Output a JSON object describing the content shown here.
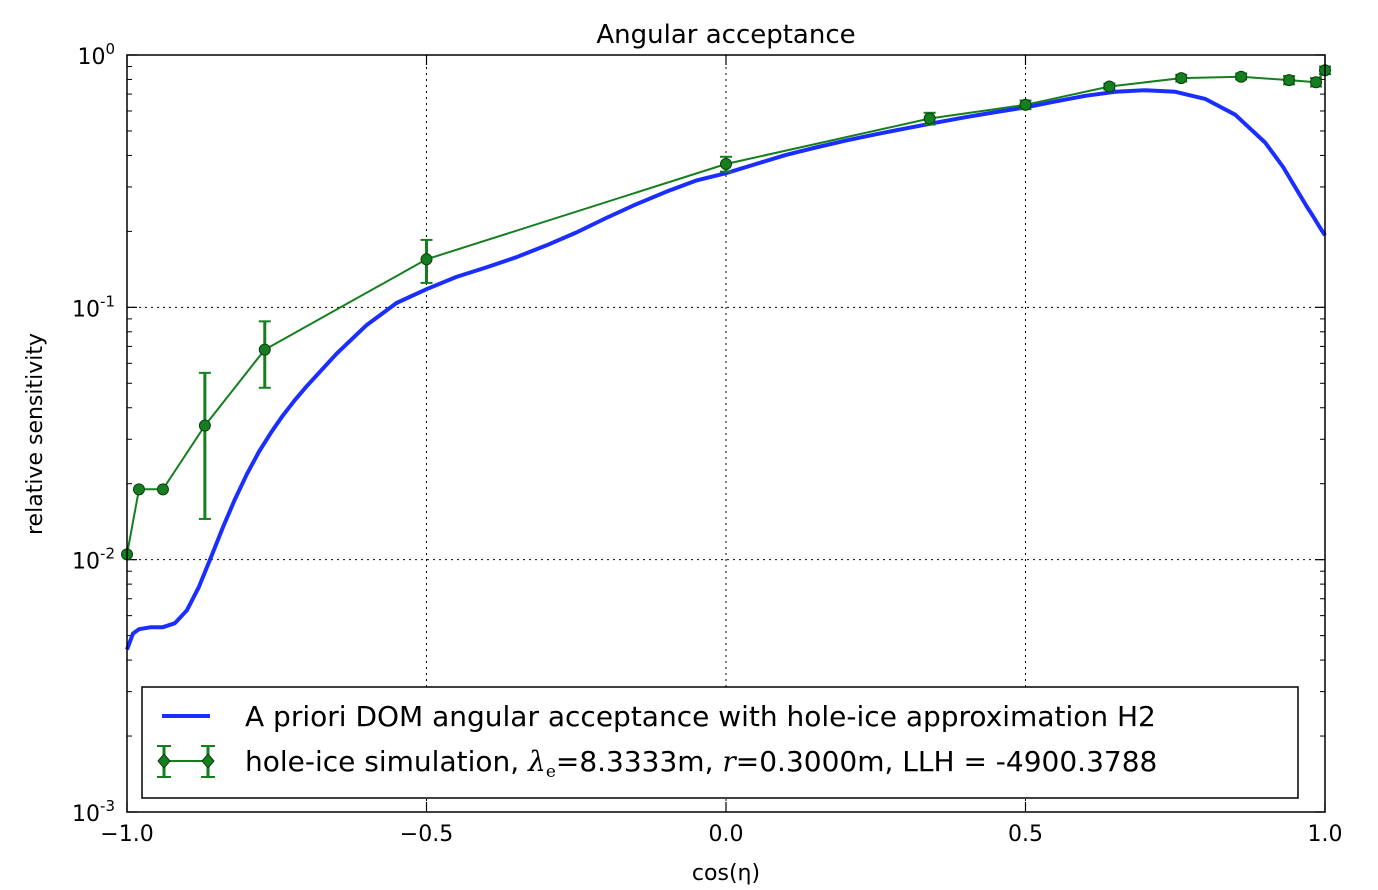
{
  "chart_data": {
    "type": "line",
    "title": "Angular acceptance",
    "xlabel": "cos(η)",
    "ylabel": "relative sensitivity",
    "xlim": [
      -1.0,
      1.0
    ],
    "ylim": [
      0.001,
      1.0
    ],
    "yscale": "log",
    "grid": true,
    "legend_position": "bottom",
    "x_ticks": [
      "−1.0",
      "−0.5",
      "0.0",
      "0.5",
      "1.0"
    ],
    "x_tick_values": [
      -1.0,
      -0.5,
      0.0,
      0.5,
      1.0
    ],
    "y_ticks": [
      {
        "base": "10",
        "exp": "0",
        "value": 1.0
      },
      {
        "base": "10",
        "exp": "-1",
        "value": 0.1
      },
      {
        "base": "10",
        "exp": "-2",
        "value": 0.01
      },
      {
        "base": "10",
        "exp": "-3",
        "value": 0.001
      }
    ],
    "series": [
      {
        "name": "A priori DOM angular acceptance with hole-ice approximation H2",
        "kind": "line",
        "color": "#1a2eff",
        "x": [
          -1.0,
          -0.99,
          -0.98,
          -0.96,
          -0.94,
          -0.92,
          -0.9,
          -0.88,
          -0.86,
          -0.84,
          -0.82,
          -0.8,
          -0.78,
          -0.76,
          -0.74,
          -0.72,
          -0.7,
          -0.65,
          -0.6,
          -0.55,
          -0.5,
          -0.45,
          -0.4,
          -0.35,
          -0.3,
          -0.25,
          -0.2,
          -0.15,
          -0.1,
          -0.05,
          0.0,
          0.05,
          0.1,
          0.15,
          0.2,
          0.25,
          0.3,
          0.35,
          0.4,
          0.45,
          0.5,
          0.55,
          0.6,
          0.65,
          0.7,
          0.75,
          0.8,
          0.85,
          0.9,
          0.93,
          0.95,
          0.97,
          0.98,
          0.99,
          1.0
        ],
        "y": [
          0.0044,
          0.0051,
          0.0053,
          0.0054,
          0.0054,
          0.0056,
          0.0063,
          0.0078,
          0.0102,
          0.0134,
          0.0173,
          0.0218,
          0.0267,
          0.0318,
          0.0372,
          0.0428,
          0.0487,
          0.0655,
          0.085,
          0.104,
          0.118,
          0.132,
          0.144,
          0.158,
          0.176,
          0.198,
          0.226,
          0.256,
          0.287,
          0.318,
          0.34,
          0.37,
          0.402,
          0.43,
          0.458,
          0.485,
          0.512,
          0.539,
          0.567,
          0.594,
          0.62,
          0.655,
          0.689,
          0.715,
          0.725,
          0.715,
          0.67,
          0.58,
          0.45,
          0.36,
          0.3,
          0.25,
          0.23,
          0.21,
          0.193
        ]
      },
      {
        "name": "hole-ice simulation, λe=8.3333m, r=0.3000m, LLH = -4900.3788",
        "kind": "errorbar",
        "color": "#157f1f",
        "x": [
          -1.0,
          -0.98,
          -0.94,
          -0.87,
          -0.77,
          -0.5,
          0.0,
          0.34,
          0.5,
          0.64,
          0.76,
          0.86,
          0.94,
          0.985,
          1.0
        ],
        "y": [
          0.0105,
          0.019,
          0.019,
          0.034,
          0.068,
          0.155,
          0.37,
          0.56,
          0.635,
          0.75,
          0.81,
          0.82,
          0.795,
          0.78,
          0.87
        ],
        "yerr_low": [
          0.0105,
          0.019,
          0.019,
          0.0145,
          0.048,
          0.125,
          0.345,
          0.53,
          0.61,
          0.73,
          0.785,
          0.8,
          0.765,
          0.75,
          0.84
        ],
        "yerr_high": [
          0.0105,
          0.019,
          0.019,
          0.055,
          0.088,
          0.185,
          0.395,
          0.59,
          0.66,
          0.77,
          0.835,
          0.845,
          0.825,
          0.81,
          0.9
        ]
      }
    ],
    "legend": {
      "entries": [
        {
          "text": "A priori DOM angular acceptance with hole-ice approximation H2"
        },
        {
          "text_parts": {
            "prefix": "hole-ice simulation, ",
            "lambda": "λ",
            "sub": "e",
            "mid": "=8.3333m, ",
            "r": "r",
            "suffix": "=0.3000m, LLH = -4900.3788"
          }
        }
      ]
    }
  }
}
